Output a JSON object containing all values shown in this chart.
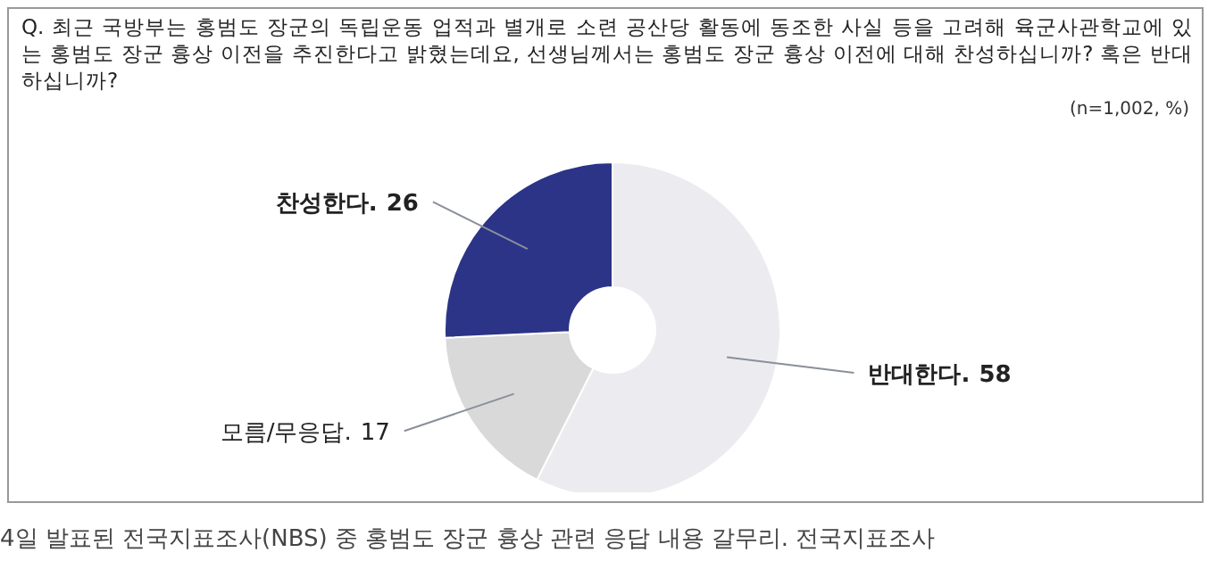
{
  "chart_data": {
    "type": "donut",
    "title": "Q. 최근 국방부는 홍범도 장군의 독립운동 업적과 별개로 소련 공산당 활동에 동조한 사실 등을 고려해 육군사관학교에 있는 홍범도 장군 흉상 이전을 추진한다고 밝혔는데요, 선생님께서는 홍범도 장군 흉상 이전에 대해 찬성하십니까? 혹은 반대 하십니까?",
    "subtitle": "(n=1,002, %)",
    "categories": [
      "반대한다.",
      "모름/무응답.",
      "찬성한다."
    ],
    "values": [
      58,
      17,
      26
    ],
    "colors": [
      "#ececf0",
      "#d9d9d9",
      "#2b3486"
    ],
    "data_labels": true,
    "legend": false,
    "annotations": [
      "4일 발표된 전국지표조사(NBS) 중 홍범도 장군 흉상 관련 응답 내용 갈무리. 전국지표조사"
    ]
  }
}
